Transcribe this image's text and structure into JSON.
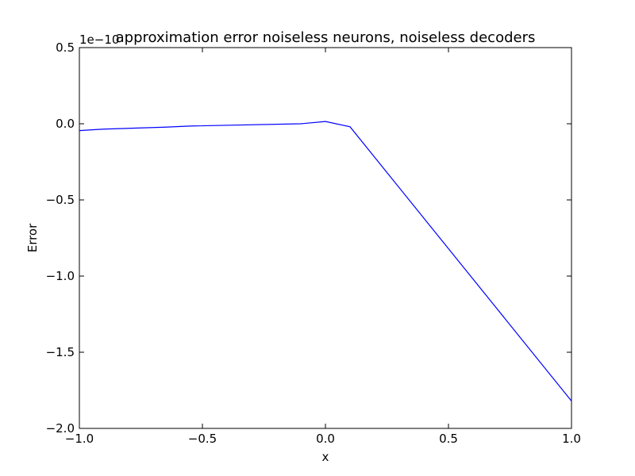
{
  "chart_data": {
    "type": "line",
    "title": "approximation error noiseless neurons, noiseless decoders",
    "xlabel": "x",
    "ylabel": "Error",
    "y_offset_label": "1e−10",
    "xlim": [
      -1.0,
      1.0
    ],
    "ylim": [
      -2.0,
      0.5
    ],
    "x_ticks": [
      -1.0,
      -0.5,
      0.0,
      0.5,
      1.0
    ],
    "x_tick_labels": [
      "−1.0",
      "−0.5",
      "0.0",
      "0.5",
      "1.0"
    ],
    "y_ticks": [
      0.5,
      0.0,
      -0.5,
      -1.0,
      -1.5,
      -2.0
    ],
    "y_tick_labels": [
      "0.5",
      "0.0",
      "−0.5",
      "−1.0",
      "−1.5",
      "−2.0"
    ],
    "grid": false,
    "series": [
      {
        "color": "#0000ff",
        "x": [
          -1.0,
          -0.9,
          -0.65,
          -0.55,
          -0.1,
          0.0,
          0.1,
          1.0
        ],
        "y": [
          -0.045,
          -0.035,
          -0.022,
          -0.015,
          0.0,
          0.015,
          -0.02,
          -1.82
        ]
      }
    ]
  }
}
